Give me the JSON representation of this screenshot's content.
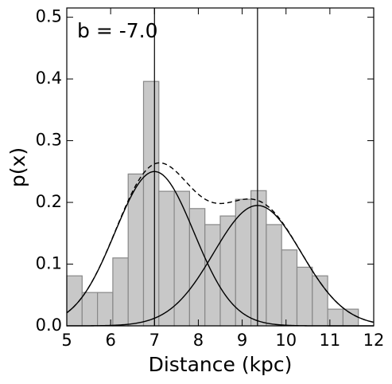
{
  "chart_data": {
    "type": "histogram",
    "annotation": "b = -7.0",
    "x_label": "Distance (kpc)",
    "y_label": "p(x)",
    "bins": [
      5.0,
      5.35,
      5.7,
      6.05,
      6.4,
      6.75,
      7.1,
      7.45,
      7.8,
      8.15,
      8.5,
      8.85,
      9.2,
      9.55,
      9.9,
      10.25,
      10.6,
      10.95,
      11.3,
      11.65
    ],
    "values": [
      0.081,
      0.054,
      0.054,
      0.11,
      0.246,
      0.396,
      0.218,
      0.218,
      0.19,
      0.164,
      0.178,
      0.205,
      0.219,
      0.164,
      0.123,
      0.095,
      0.081,
      0.027,
      0.027
    ],
    "color": "#c8c8c8",
    "curves": [
      {
        "mean": 7.0,
        "sigma": 0.9,
        "peak": 0.25
      },
      {
        "mean": 9.35,
        "sigma": 1.0,
        "peak": 0.195
      }
    ],
    "xlim": [
      5,
      12
    ],
    "ylim": [
      0,
      0.515
    ],
    "xticks": [
      5,
      6,
      7,
      8,
      9,
      10,
      11,
      12
    ],
    "yticks": [
      {
        "value": 0,
        "label": "0.0"
      },
      0.1,
      0.2,
      0.3,
      0.4,
      0.5
    ]
  }
}
